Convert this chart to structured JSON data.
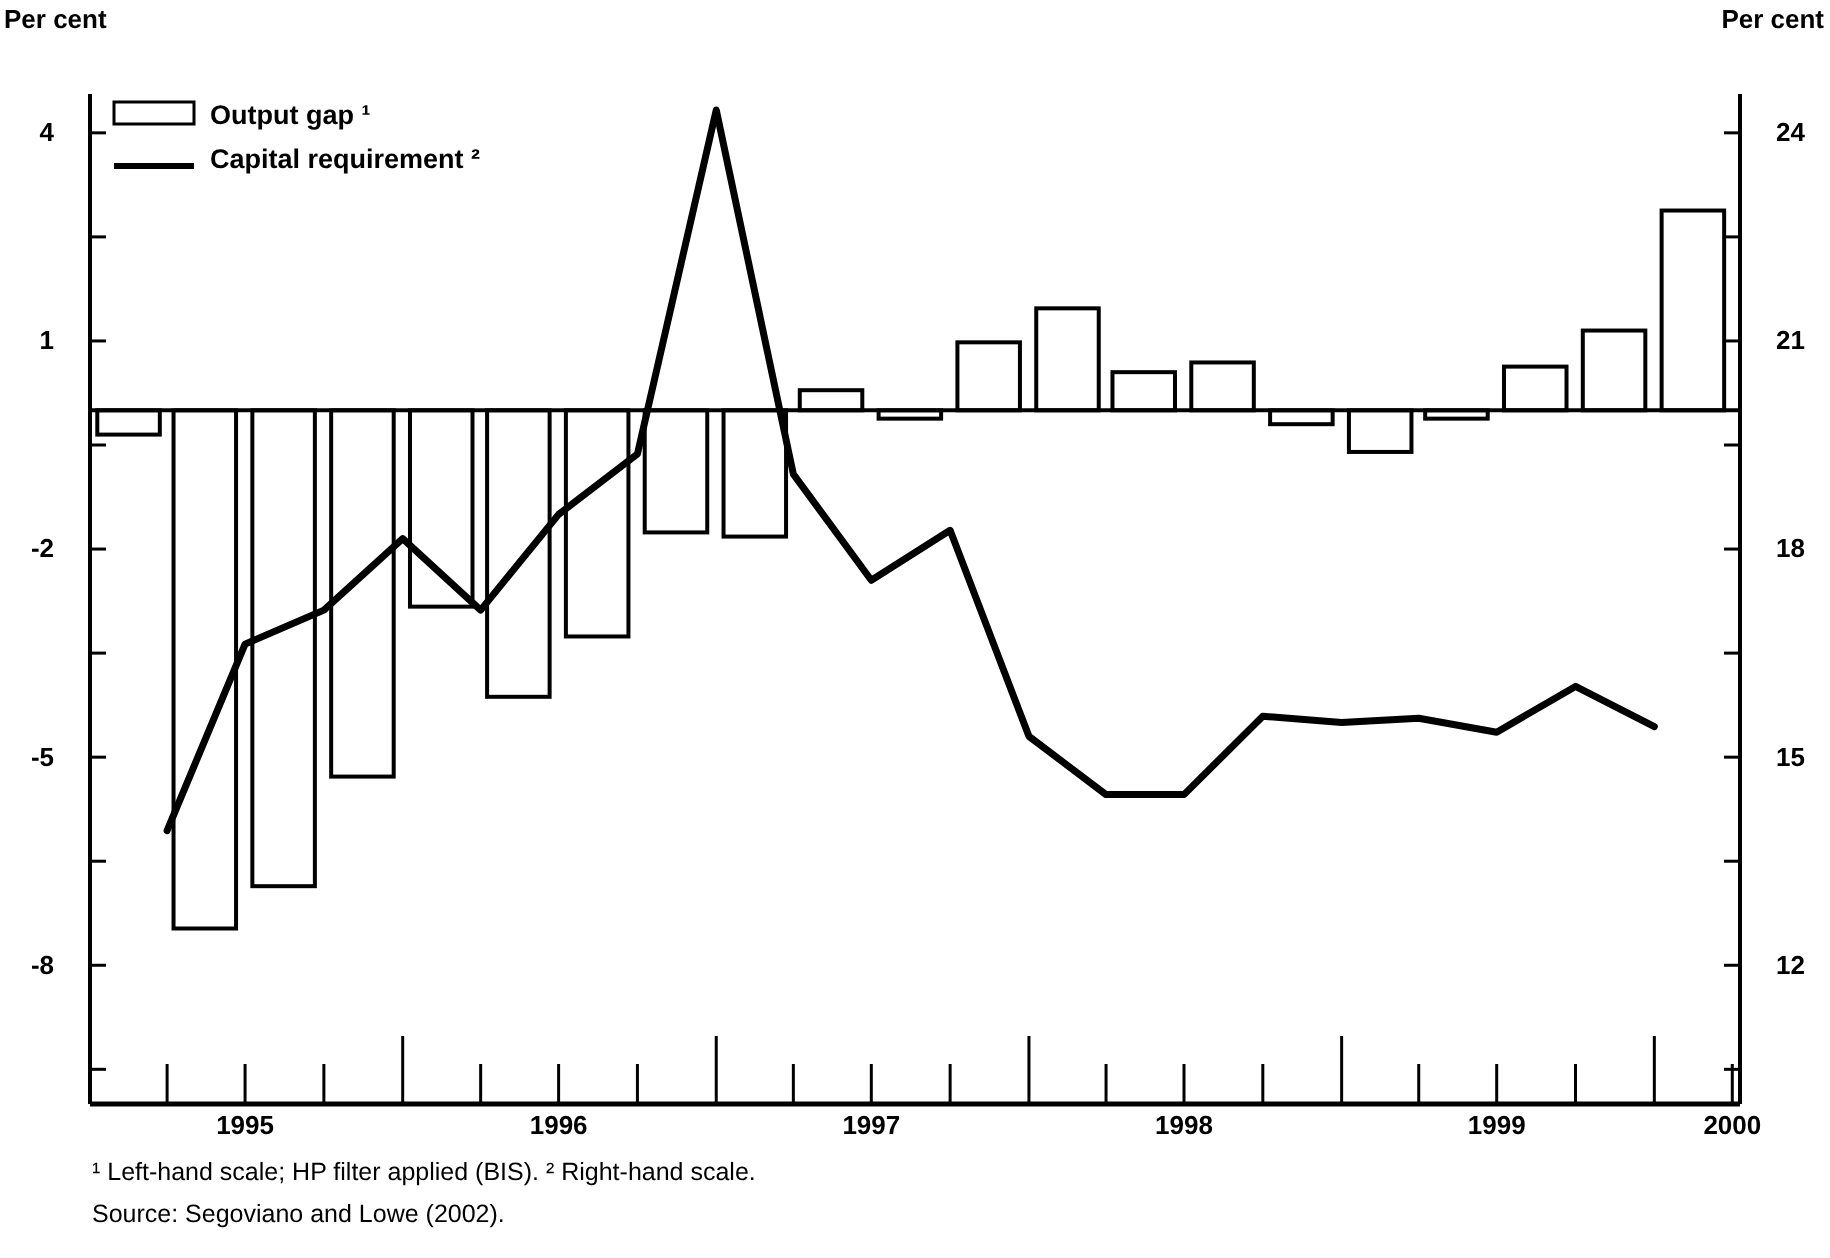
{
  "chart_data": {
    "type": "bar",
    "ylabel": "Per cent",
    "y2label": "Per cent",
    "xlim": [
      "1995-01-01",
      "2000-04-10"
    ],
    "xticks": [
      {
        "value": "1995-07-01",
        "label": "1995"
      },
      {
        "value": "1996-07-01",
        "label": "1996"
      },
      {
        "value": "1997-07-01",
        "label": "1997"
      },
      {
        "value": "1998-07-01",
        "label": "1998"
      },
      {
        "value": "1999-07-01",
        "label": "1999"
      },
      {
        "value": "2000-04-01",
        "label": "2000"
      }
    ],
    "ylim": [
      -10,
      4.56
    ],
    "yticks": [
      {
        "value": 2.5,
        "label": null
      },
      4,
      1,
      {
        "value": -0.5,
        "label": null
      },
      -2,
      {
        "value": -3.5,
        "label": null
      },
      -5,
      {
        "value": -6.5,
        "label": null
      },
      -8,
      {
        "value": -9.5,
        "label": null
      }
    ],
    "y2lim": [
      10,
      24.56
    ],
    "y2ticks": [
      24,
      {
        "value": 22.5,
        "label": null
      },
      21,
      {
        "value": 19.5,
        "label": null
      },
      18,
      {
        "value": 16.5,
        "label": null
      },
      15,
      {
        "value": 13.5,
        "label": null
      },
      12,
      {
        "value": 10.5,
        "label": null
      }
    ],
    "legend": "top left",
    "grid": false,
    "series": [
      {
        "name": "Output gap ¹",
        "color": "#ffffff",
        "x": [
          "1995-02-15",
          "1995-05-15",
          "1995-08-15",
          "1995-11-15",
          "1996-02-15",
          "1996-05-15",
          "1996-08-15",
          "1996-11-15",
          "1997-02-15",
          "1997-05-15",
          "1997-08-15",
          "1997-11-15",
          "1998-02-15",
          "1998-05-15",
          "1998-08-15",
          "1998-11-15",
          "1999-02-15",
          "1999-05-15",
          "1999-08-15",
          "1999-11-15",
          "2000-02-15"
        ],
        "values": [
          -0.35,
          -7.47,
          -6.86,
          -5.28,
          -2.83,
          -4.13,
          -3.26,
          -1.76,
          -1.82,
          0.29,
          -0.12,
          0.98,
          1.47,
          0.55,
          0.69,
          -0.2,
          -0.6,
          -0.12,
          0.63,
          1.15,
          2.88
        ]
      },
      {
        "name": "Capital requirement ²",
        "type": "line",
        "axis": "y2",
        "color": "#000000",
        "x": [
          "1995-04-01",
          "1995-07-01",
          "1995-10-01",
          "1996-01-01",
          "1996-04-01",
          "1996-07-01",
          "1996-10-01",
          "1997-01-01",
          "1997-04-01",
          "1997-07-01",
          "1997-10-01",
          "1998-01-01",
          "1998-04-01",
          "1998-07-01",
          "1998-10-01",
          "1999-01-01",
          "1999-04-01",
          "1999-07-01",
          "1999-10-01",
          "2000-01-01"
        ],
        "values": [
          13.94,
          16.63,
          17.12,
          18.15,
          17.12,
          18.5,
          19.37,
          24.33,
          19.08,
          17.55,
          18.27,
          15.3,
          14.46,
          14.46,
          15.59,
          15.5,
          15.56,
          15.36,
          16.02,
          15.44
        ]
      }
    ],
    "annotations": [
      "¹ Left-hand scale; HP filter applied (BIS). ² Right-hand scale.",
      "Source: Segoviano and Lowe (2002)."
    ]
  }
}
